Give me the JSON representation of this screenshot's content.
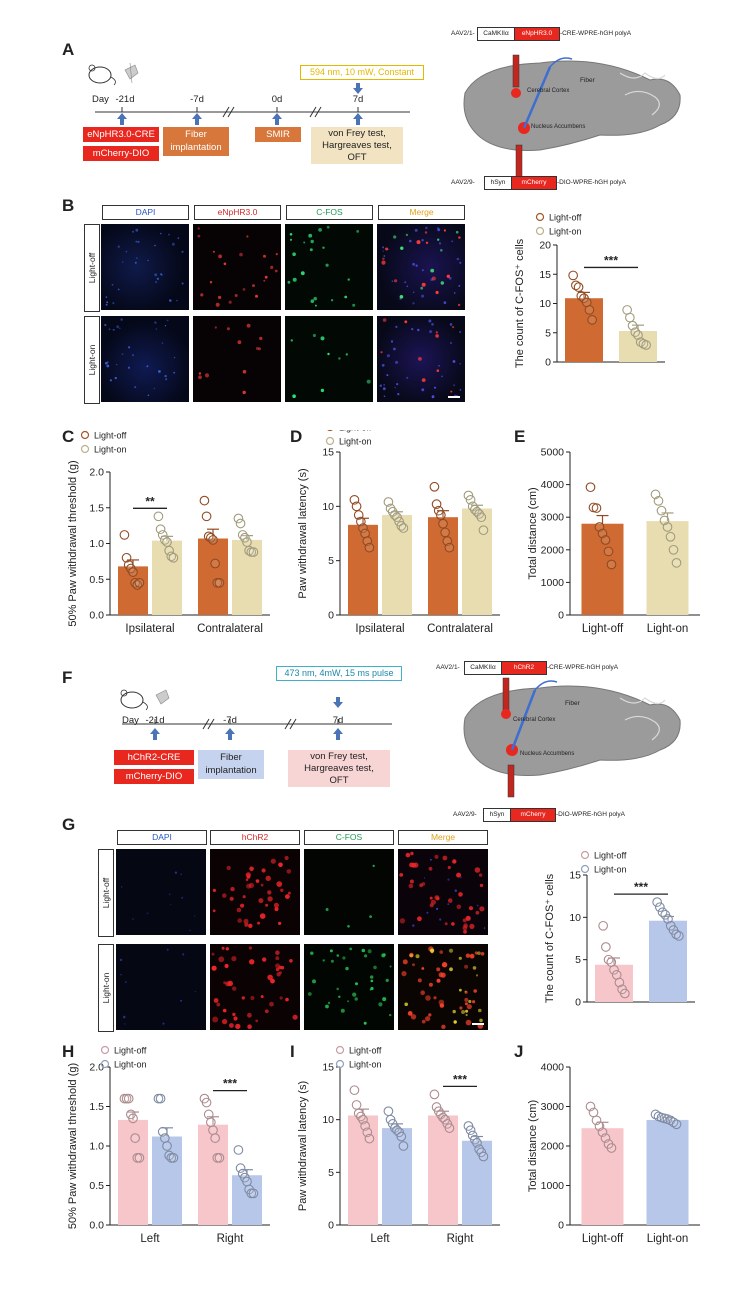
{
  "panels": {
    "A": "A",
    "B": "B",
    "C": "C",
    "D": "D",
    "E": "E",
    "F": "F",
    "G": "G",
    "H": "H",
    "I": "I",
    "J": "J"
  },
  "timeline_A": {
    "day_label": "Day",
    "days": [
      "-21d",
      "-7d",
      "0d",
      "7d"
    ],
    "light_box": "594 nm, 10 mW, Constant",
    "box1": "eNpHR3.0-CRE",
    "box2": "mCherry-DIO",
    "fiber": "Fiber\nimplantation",
    "smir": "SMIR",
    "tests": "von Frey test,\nHargreaves test,\nOFT"
  },
  "brain_A": {
    "aav_top": "AAV2/1-",
    "promoter_top": "CaMKIIα",
    "gene_top": "eNpHR3.0",
    "suffix_top": "-CRE-WPRE-hGH polyA",
    "aav_bottom": "AAV2/9-",
    "promoter_bottom": "hSyn",
    "gene_bottom": "mCherry",
    "suffix_bottom": "-DIO-WPRE-hGH polyA",
    "fiber": "Fiber",
    "cortex": "Cerebral Cortex",
    "nac": "Nucleus Accumbens"
  },
  "timeline_F": {
    "day_label": "Day",
    "days": [
      "-21d",
      "-7d",
      "7d"
    ],
    "light_box": "473 nm, 4mW, 15 ms pulse",
    "box1": "hChR2-CRE",
    "box2": "mCherry-DIO",
    "fiber": "Fiber\nimplantation",
    "tests": "von Frey test,\nHargreaves test,\nOFT"
  },
  "brain_F": {
    "aav_top": "AAV2/1-",
    "promoter_top": "CaMKIIα",
    "gene_top": "hChR2",
    "suffix_top": "-CRE-WPRE-hGH polyA",
    "aav_bottom": "AAV2/9-",
    "promoter_bottom": "hSyn",
    "gene_bottom": "mCherry",
    "suffix_bottom": "-DIO-WPRE-hGH polyA",
    "fiber": "Fiber",
    "cortex": "Cerebral Cortex",
    "nac": "Nucleus Accumbens"
  },
  "micro_B": {
    "columns": [
      "DAPI",
      "eNpHR3.0",
      "C-FOS",
      "Merge"
    ],
    "column_colors": [
      "#2a55c4",
      "#d42a2a",
      "#1f9a55",
      "#e0a21a"
    ],
    "rows": [
      "Light-off",
      "Light-on"
    ]
  },
  "micro_G": {
    "columns": [
      "DAPI",
      "hChR2",
      "C-FOS",
      "Merge"
    ],
    "column_colors": [
      "#2a55c4",
      "#d42a2a",
      "#1f9a55",
      "#e0a21a"
    ],
    "rows": [
      "Light-off",
      "Light-on"
    ]
  },
  "colors": {
    "off_A": "#cf6a32",
    "on_A": "#e8ddb0",
    "off_F": "#f7c6cb",
    "on_F": "#b6c7ea"
  },
  "chart_data": [
    {
      "id": "B",
      "type": "bar",
      "ylabel": "The count of C-FOS⁺ cells",
      "categories": [
        "Light-off",
        "Light-on"
      ],
      "show_xticks": false,
      "legend": [
        "Light-off",
        "Light-on"
      ],
      "ylim": [
        0,
        20
      ],
      "yticks": [
        0,
        5,
        10,
        15,
        20
      ],
      "values": [
        10.9,
        5.3
      ],
      "errors": [
        1.0,
        1.0
      ],
      "points": [
        [
          14.8,
          13.1,
          12.8,
          11.3,
          10.9,
          10.2,
          8.9,
          7.2
        ],
        [
          8.9,
          7.6,
          6.2,
          5.1,
          4.6,
          3.4,
          3.1,
          2.9
        ]
      ],
      "significance": [
        {
          "between": [
            0,
            1
          ],
          "label": "***"
        }
      ]
    },
    {
      "id": "C",
      "type": "bar",
      "ylabel": "50% Paw withdrawal threshold (g)",
      "categories": [
        "Ipsilateral",
        "Contralateral"
      ],
      "legend": [
        "Light-off",
        "Light-on"
      ],
      "ylim": [
        0,
        2.0
      ],
      "yticks": [
        0.0,
        0.5,
        1.0,
        1.5,
        2.0
      ],
      "series": [
        {
          "name": "Light-off",
          "values": [
            0.68,
            1.07
          ],
          "errors": [
            0.09,
            0.13
          ],
          "points": [
            [
              1.12,
              0.8,
              0.7,
              0.65,
              0.6,
              0.45,
              0.42,
              0.45
            ],
            [
              1.6,
              1.38,
              1.1,
              1.08,
              1.05,
              0.72,
              0.45,
              0.45
            ]
          ]
        },
        {
          "name": "Light-on",
          "values": [
            1.04,
            1.05
          ],
          "errors": [
            0.06,
            0.06
          ],
          "points": [
            [
              1.38,
              1.2,
              1.12,
              1.05,
              1.02,
              0.9,
              0.82,
              0.8
            ],
            [
              1.35,
              1.28,
              1.12,
              1.08,
              1.02,
              0.9,
              0.88,
              0.88
            ]
          ]
        }
      ],
      "significance": [
        {
          "group": 0,
          "label": "**"
        }
      ]
    },
    {
      "id": "D",
      "type": "bar",
      "ylabel": "Paw withdrawal latency (s)",
      "categories": [
        "Ipsilateral",
        "Contralateral"
      ],
      "legend": [
        "Light-off",
        "Light-on"
      ],
      "ylim": [
        0,
        15
      ],
      "yticks": [
        0,
        5,
        10,
        15
      ],
      "series": [
        {
          "name": "Light-off",
          "values": [
            8.3,
            9.0
          ],
          "errors": [
            0.6,
            0.6
          ],
          "points": [
            [
              10.6,
              10.0,
              9.2,
              8.6,
              8.0,
              7.5,
              6.8,
              6.2
            ],
            [
              11.8,
              10.2,
              9.6,
              9.2,
              8.4,
              7.6,
              6.8,
              6.2
            ]
          ]
        },
        {
          "name": "Light-on",
          "values": [
            9.2,
            9.8
          ],
          "errors": [
            0.3,
            0.3
          ],
          "points": [
            [
              10.4,
              9.8,
              9.5,
              9.2,
              9.0,
              8.6,
              8.2,
              8.0
            ],
            [
              11.0,
              10.6,
              10.0,
              9.7,
              9.5,
              9.3,
              9.0,
              7.8
            ]
          ]
        }
      ]
    },
    {
      "id": "E",
      "type": "bar",
      "ylabel": "Total distance (cm)",
      "categories": [
        "Light-off",
        "Light-on"
      ],
      "ylim": [
        0,
        5000
      ],
      "yticks": [
        0,
        1000,
        2000,
        3000,
        4000,
        5000
      ],
      "values": [
        2800,
        2880
      ],
      "errors": [
        250,
        250
      ],
      "points": [
        [
          3920,
          3300,
          3280,
          2700,
          2500,
          2300,
          1950,
          1550
        ],
        [
          3700,
          3500,
          3200,
          2900,
          2700,
          2400,
          2000,
          1600
        ]
      ]
    },
    {
      "id": "G",
      "type": "bar",
      "ylabel": "The count of C-FOS⁺ cells",
      "categories": [
        "Light-off",
        "Light-on"
      ],
      "show_xticks": false,
      "legend": [
        "Light-off",
        "Light-on"
      ],
      "ylim": [
        0,
        15
      ],
      "yticks": [
        0,
        5,
        10,
        15
      ],
      "values": [
        4.4,
        9.6
      ],
      "errors": [
        0.8,
        0.5
      ],
      "points": [
        [
          9.0,
          6.5,
          5.0,
          4.7,
          3.8,
          3.2,
          2.3,
          1.5,
          1.0
        ],
        [
          11.8,
          11.2,
          10.6,
          10.3,
          9.8,
          9.0,
          8.5,
          8.0,
          7.8
        ]
      ],
      "significance": [
        {
          "between": [
            0,
            1
          ],
          "label": "***"
        }
      ]
    },
    {
      "id": "H",
      "type": "bar",
      "ylabel": "50% Paw withdrawal threshold (g)",
      "categories": [
        "Left",
        "Right"
      ],
      "legend": [
        "Light-off",
        "Light-on"
      ],
      "ylim": [
        0,
        2.0
      ],
      "yticks": [
        0.0,
        0.5,
        1.0,
        1.5,
        2.0
      ],
      "series": [
        {
          "name": "Light-off",
          "values": [
            1.33,
            1.27
          ],
          "errors": [
            0.1,
            0.1
          ],
          "points": [
            [
              1.6,
              1.6,
              1.6,
              1.4,
              1.35,
              1.1,
              0.85,
              0.85
            ],
            [
              1.6,
              1.55,
              1.4,
              1.3,
              1.2,
              1.1,
              0.85,
              0.85
            ]
          ]
        },
        {
          "name": "Light-on",
          "values": [
            1.12,
            0.63
          ],
          "errors": [
            0.11,
            0.07
          ],
          "points": [
            [
              1.6,
              1.6,
              1.18,
              1.1,
              1.0,
              0.88,
              0.85,
              0.85
            ],
            [
              0.95,
              0.72,
              0.65,
              0.6,
              0.55,
              0.45,
              0.4,
              0.4
            ]
          ]
        }
      ],
      "significance": [
        {
          "group": 1,
          "label": "***"
        }
      ]
    },
    {
      "id": "I",
      "type": "bar",
      "ylabel": "Paw withdrawal latency (s)",
      "categories": [
        "Left",
        "Right"
      ],
      "legend": [
        "Light-off",
        "Light-on"
      ],
      "ylim": [
        0,
        15
      ],
      "yticks": [
        0,
        5,
        10,
        15
      ],
      "series": [
        {
          "name": "Light-off",
          "values": [
            10.4,
            10.4
          ],
          "errors": [
            0.6,
            0.4
          ],
          "points": [
            [
              12.8,
              11.4,
              10.6,
              10.3,
              10.0,
              9.4,
              8.8,
              8.2
            ],
            [
              12.4,
              11.2,
              10.8,
              10.5,
              10.2,
              10.0,
              9.6,
              9.2
            ]
          ]
        },
        {
          "name": "Light-on",
          "values": [
            9.2,
            8.0
          ],
          "errors": [
            0.4,
            0.4
          ],
          "points": [
            [
              10.8,
              10.0,
              9.6,
              9.2,
              9.0,
              8.8,
              8.4,
              7.5
            ],
            [
              9.4,
              9.0,
              8.5,
              8.1,
              7.8,
              7.2,
              6.9,
              6.5
            ]
          ]
        }
      ],
      "significance": [
        {
          "group": 1,
          "label": "***"
        }
      ]
    },
    {
      "id": "J",
      "type": "bar",
      "ylabel": "Total distance (cm)",
      "categories": [
        "Light-off",
        "Light-on"
      ],
      "ylim": [
        0,
        4000
      ],
      "yticks": [
        0,
        1000,
        2000,
        3000,
        4000
      ],
      "values": [
        2450,
        2660
      ],
      "errors": [
        150,
        60
      ],
      "points": [
        [
          3000,
          2850,
          2650,
          2500,
          2350,
          2200,
          2050,
          1950
        ],
        [
          2800,
          2750,
          2720,
          2700,
          2680,
          2650,
          2600,
          2550
        ]
      ]
    }
  ]
}
